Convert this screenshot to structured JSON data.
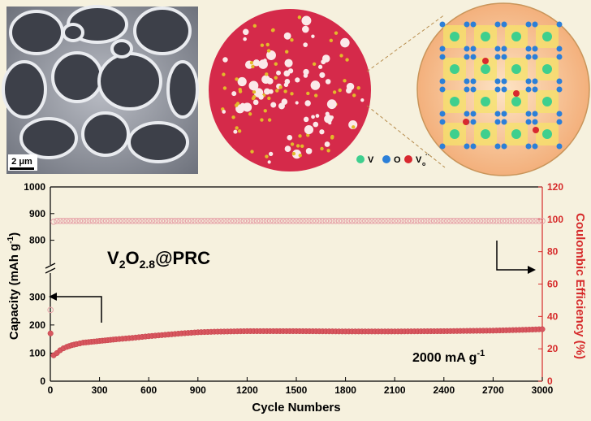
{
  "sem_panel": {
    "scale_bar_label": "2 μm"
  },
  "schematic": {
    "legend": [
      {
        "symbol": "V",
        "color": "#3ecf8e"
      },
      {
        "symbol": "O",
        "color": "#2b7fd8"
      },
      {
        "symbol": "V",
        "subscript": "o",
        "superscript": "··",
        "color": "#d8282f"
      }
    ]
  },
  "chart_data": {
    "type": "scatter",
    "xlabel": "Cycle Numbers",
    "ylabel_left": "Capacity (mAh g",
    "ylabel_left_sup": "-1",
    "ylabel_left_end": ")",
    "ylabel_right": "Coulombic Efficiency (%)",
    "x_ticks": [
      "0",
      "300",
      "600",
      "900",
      "1200",
      "1500",
      "1800",
      "2100",
      "2400",
      "2700",
      "3000"
    ],
    "xlim": [
      0,
      3000
    ],
    "y_left_upper_ticks": [
      "800",
      "900",
      "1000"
    ],
    "y_left_lower_ticks": [
      "0",
      "100",
      "200",
      "300"
    ],
    "ylim_left_upper": [
      750,
      1000
    ],
    "ylim_left_lower": [
      0,
      350
    ],
    "y_right_ticks": [
      "0",
      "20",
      "40",
      "60",
      "80",
      "100",
      "120"
    ],
    "ylim_right": [
      0,
      120
    ],
    "axis_break": true,
    "label_material": {
      "base": "V",
      "s1": "2",
      "mid": "O",
      "s2": "2.8",
      "end": "@PRC"
    },
    "label_rate": {
      "text": "2000 mA g",
      "sup": "-1"
    },
    "series": [
      {
        "axis": "left",
        "marker": "filled",
        "color": "#d7575f",
        "x": [
          1,
          20,
          40,
          60,
          80,
          100,
          130,
          160,
          200,
          250,
          300,
          350,
          400,
          500,
          600,
          700,
          800,
          900,
          1000,
          1200,
          1500,
          1800,
          2100,
          2400,
          2700,
          2900,
          3000
        ],
        "y": [
          170,
          92,
          100,
          110,
          117,
          122,
          128,
          132,
          137,
          140,
          143,
          146,
          149,
          154,
          160,
          165,
          170,
          174,
          176,
          178,
          178,
          177,
          177,
          178,
          180,
          183,
          185
        ]
      },
      {
        "axis": "right",
        "marker": "open",
        "color": "#e6a2a8",
        "x": [
          1,
          20,
          40,
          100,
          200,
          300,
          600,
          900,
          1200,
          1500,
          1800,
          2100,
          2400,
          2700,
          3000
        ],
        "y": [
          44,
          98.5,
          99,
          99,
          99,
          99,
          99,
          99,
          99,
          99,
          99,
          99,
          99,
          99,
          99
        ]
      }
    ]
  }
}
